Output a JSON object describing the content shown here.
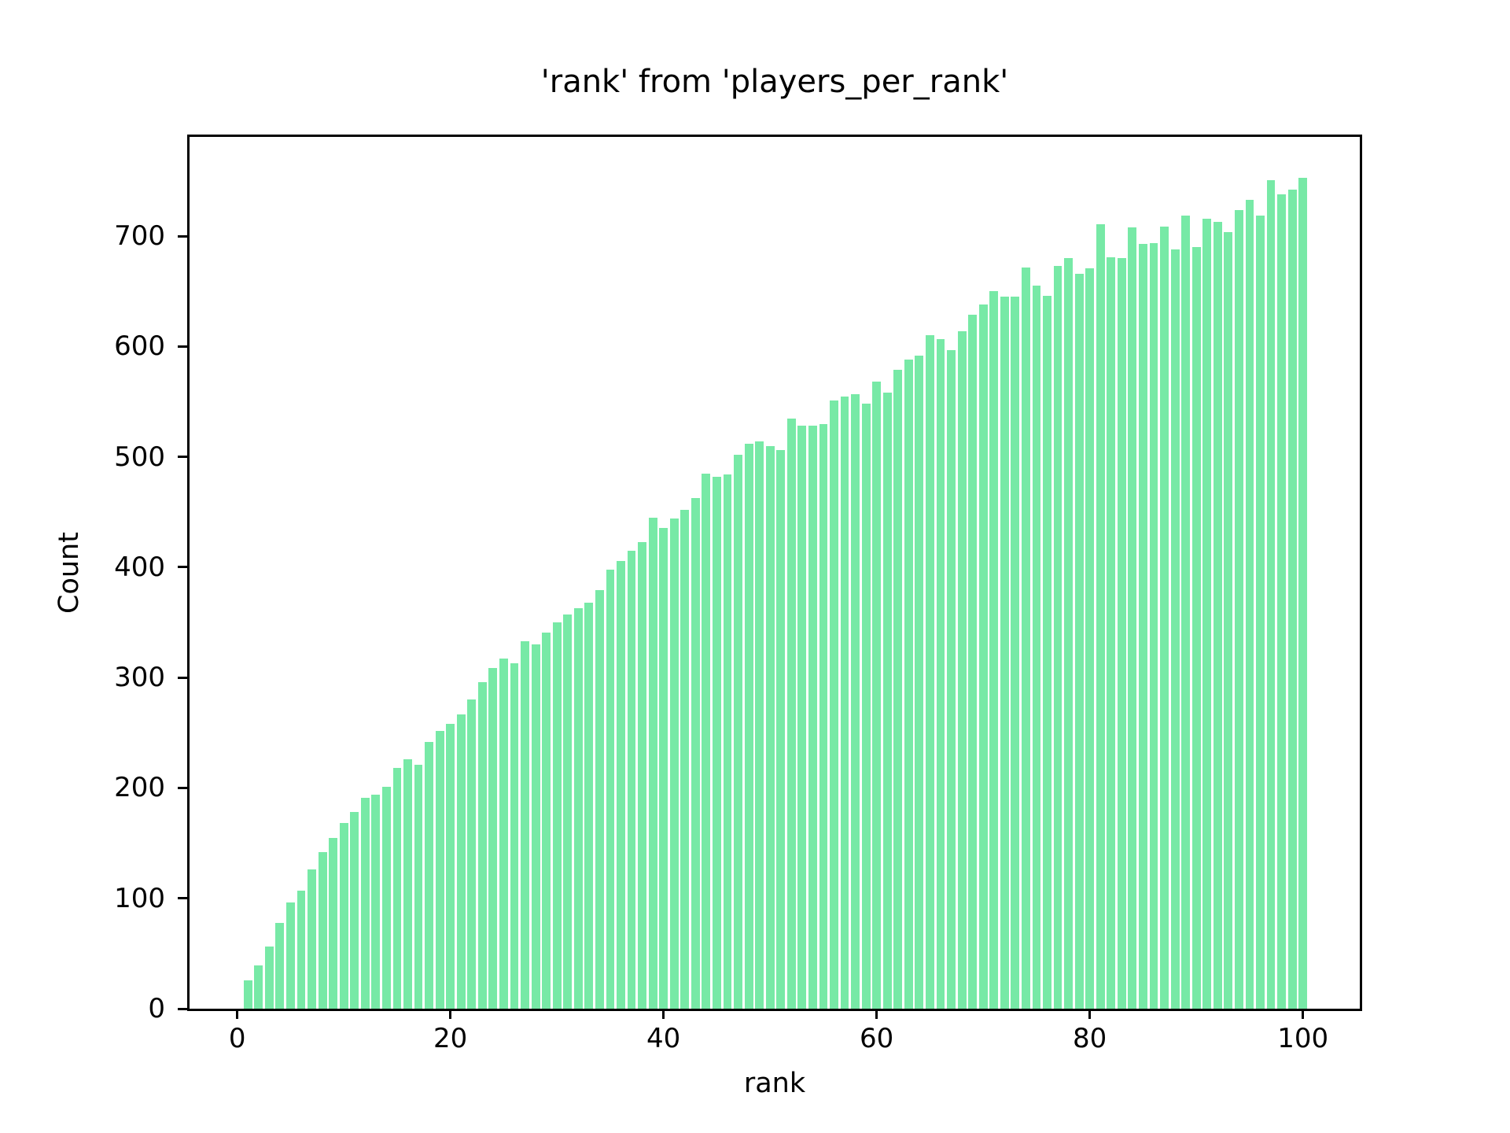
{
  "chart_data": {
    "type": "bar",
    "title": "'rank' from 'players_per_rank'",
    "xlabel": "rank",
    "ylabel": "Count",
    "x_start": 1,
    "x_end": 100,
    "bar_width_fraction": 0.8,
    "xlim": [
      -4.4,
      105.4
    ],
    "ylim": [
      0,
      790
    ],
    "xticks": [
      0,
      20,
      40,
      60,
      80,
      100
    ],
    "yticks": [
      0,
      100,
      200,
      300,
      400,
      500,
      600,
      700
    ],
    "grid": false,
    "legend": "none",
    "bar_color": "#77e9a6",
    "axis_color": "#000000",
    "values": [
      26,
      39,
      56,
      78,
      96,
      107,
      126,
      142,
      155,
      168,
      178,
      191,
      194,
      201,
      218,
      226,
      221,
      242,
      252,
      258,
      267,
      280,
      296,
      309,
      317,
      313,
      333,
      330,
      341,
      350,
      357,
      363,
      368,
      379,
      398,
      406,
      415,
      423,
      445,
      436,
      444,
      452,
      463,
      485,
      482,
      484,
      502,
      512,
      514,
      510,
      506,
      535,
      528,
      528,
      530,
      551,
      555,
      557,
      548,
      568,
      558,
      579,
      588,
      592,
      610,
      607,
      597,
      614,
      629,
      638,
      650,
      645,
      645,
      672,
      655,
      646,
      673,
      680,
      666,
      671,
      711,
      681,
      680,
      708,
      693,
      694,
      709,
      688,
      719,
      690,
      716,
      713,
      704,
      724,
      733,
      719,
      751,
      738,
      742,
      753
    ]
  }
}
